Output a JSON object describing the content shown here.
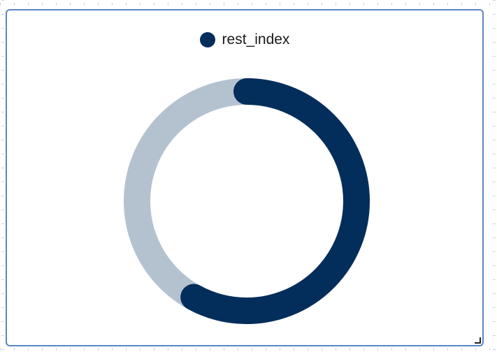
{
  "chart_data": {
    "type": "pie",
    "series": [
      {
        "name": "rest_index",
        "values": [
          58,
          42
        ],
        "colors": [
          "#032d5a",
          "#b4c2d0"
        ]
      }
    ],
    "legend": [
      "rest_index"
    ],
    "legend_position": "top-center",
    "style": "donut"
  },
  "legend": {
    "label": "rest_index",
    "color": "#032d5a"
  }
}
